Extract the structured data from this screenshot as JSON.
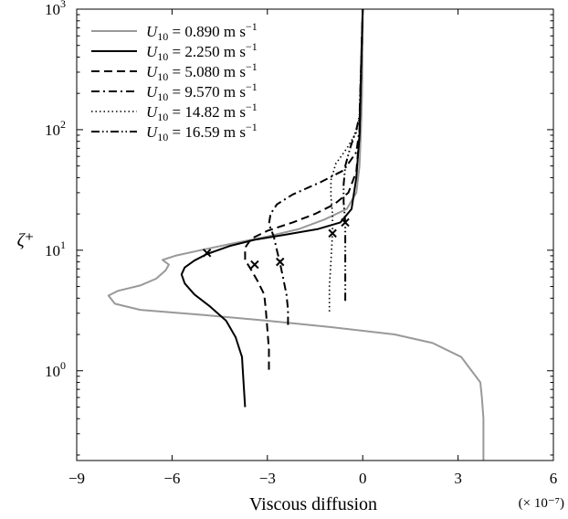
{
  "chart_data": {
    "type": "line",
    "xlabel": "Viscous diffusion",
    "ylabel": "ζ⁺",
    "x_scale_note": "(× 10⁻⁷)",
    "xlim": [
      -9,
      6
    ],
    "ylim": [
      0.18,
      1000
    ],
    "yscale": "log",
    "x_ticks": [
      -9,
      -6,
      -3,
      0,
      3,
      6
    ],
    "x_tick_labels": [
      "−9",
      "−6",
      "−3",
      "0",
      "3",
      "6"
    ],
    "y_ticks": [
      1,
      10,
      100,
      1000
    ],
    "y_tick_labels": [
      {
        "base": "10",
        "exp": "0"
      },
      {
        "base": "10",
        "exp": "1"
      },
      {
        "base": "10",
        "exp": "2"
      },
      {
        "base": "10",
        "exp": "3"
      }
    ],
    "grid": false,
    "legend_position": "top-left",
    "series": [
      {
        "name": "U10 = 0.890 m s−1",
        "legend": {
          "var": "U",
          "sub": "10",
          "text": " = 0.890 m s",
          "sup": "−1"
        },
        "color": "#999999",
        "dash": "",
        "width": 2,
        "points": [
          [
            3.8,
            0.18
          ],
          [
            3.8,
            0.4
          ],
          [
            3.75,
            0.6
          ],
          [
            3.7,
            0.8
          ],
          [
            3.1,
            1.3
          ],
          [
            2.2,
            1.7
          ],
          [
            1.0,
            2.0
          ],
          [
            -1.0,
            2.3
          ],
          [
            -3.0,
            2.6
          ],
          [
            -5.0,
            2.9
          ],
          [
            -7.0,
            3.2
          ],
          [
            -7.8,
            3.6
          ],
          [
            -8.0,
            4.2
          ],
          [
            -7.7,
            4.6
          ],
          [
            -7.0,
            5.1
          ],
          [
            -6.5,
            5.8
          ],
          [
            -6.2,
            6.8
          ],
          [
            -6.1,
            7.6
          ],
          [
            -6.3,
            8.3
          ],
          [
            -5.9,
            9.0
          ],
          [
            -5.1,
            10.0
          ],
          [
            -4.0,
            11.5
          ],
          [
            -3.0,
            13.0
          ],
          [
            -2.0,
            15.0
          ],
          [
            -1.2,
            18.0
          ],
          [
            -0.5,
            22.0
          ],
          [
            -0.2,
            30.0
          ],
          [
            -0.1,
            50.0
          ],
          [
            -0.05,
            110.0
          ],
          [
            -0.02,
            200.0
          ],
          [
            0.0,
            1000.0
          ]
        ]
      },
      {
        "name": "U10 = 2.250 m s−1",
        "legend": {
          "var": "U",
          "sub": "10",
          "text": " = 2.250 m s",
          "sup": "−1"
        },
        "color": "#000000",
        "dash": "",
        "width": 2,
        "points": [
          [
            -3.7,
            0.5
          ],
          [
            -3.75,
            0.8
          ],
          [
            -3.8,
            1.3
          ],
          [
            -4.0,
            1.9
          ],
          [
            -4.3,
            2.6
          ],
          [
            -4.8,
            3.4
          ],
          [
            -5.3,
            4.3
          ],
          [
            -5.6,
            5.3
          ],
          [
            -5.7,
            6.3
          ],
          [
            -5.6,
            7.2
          ],
          [
            -5.3,
            8.2
          ],
          [
            -4.9,
            9.3
          ],
          [
            -4.2,
            10.8
          ],
          [
            -3.4,
            12.2
          ],
          [
            -2.4,
            13.5
          ],
          [
            -1.4,
            15.0
          ],
          [
            -0.7,
            17.0
          ],
          [
            -0.35,
            22.0
          ],
          [
            -0.2,
            40.0
          ],
          [
            -0.1,
            90.0
          ],
          [
            0.0,
            1000.0
          ]
        ]
      },
      {
        "name": "U10 = 5.080 m s−1",
        "legend": {
          "var": "U",
          "sub": "10",
          "text": " = 5.080 m s",
          "sup": "−1"
        },
        "color": "#000000",
        "dash": "9,5",
        "width": 2,
        "points": [
          [
            -2.95,
            1.02
          ],
          [
            -2.95,
            1.5
          ],
          [
            -3.0,
            2.2
          ],
          [
            -3.05,
            3.2
          ],
          [
            -3.1,
            4.3
          ],
          [
            -3.3,
            5.5
          ],
          [
            -3.5,
            6.8
          ],
          [
            -3.7,
            8.3
          ],
          [
            -3.7,
            10.5
          ],
          [
            -3.5,
            12.5
          ],
          [
            -3.0,
            14.5
          ],
          [
            -2.2,
            17.0
          ],
          [
            -1.5,
            20.0
          ],
          [
            -0.9,
            24.0
          ],
          [
            -0.45,
            30.0
          ],
          [
            -0.2,
            45.0
          ],
          [
            -0.1,
            90.0
          ],
          [
            0.0,
            1000.0
          ]
        ]
      },
      {
        "name": "U10 = 9.570 m s−1",
        "legend": {
          "var": "U",
          "sub": "10",
          "text": " = 9.570 m s",
          "sup": "−1"
        },
        "color": "#000000",
        "dash": "9,4,2,4",
        "width": 2,
        "points": [
          [
            -2.35,
            2.4
          ],
          [
            -2.35,
            3.2
          ],
          [
            -2.4,
            4.3
          ],
          [
            -2.5,
            5.8
          ],
          [
            -2.6,
            7.8
          ],
          [
            -2.7,
            10.0
          ],
          [
            -2.8,
            13.0
          ],
          [
            -2.95,
            16.5
          ],
          [
            -2.9,
            20.0
          ],
          [
            -2.7,
            24.0
          ],
          [
            -2.2,
            29.0
          ],
          [
            -1.3,
            37.0
          ],
          [
            -0.6,
            46.0
          ],
          [
            -0.2,
            65.0
          ],
          [
            -0.1,
            100.0
          ],
          [
            0.0,
            1000.0
          ]
        ]
      },
      {
        "name": "U10 = 14.82 m s−1",
        "legend": {
          "var": "U",
          "sub": "10",
          "text": " = 14.82 m s",
          "sup": "−1"
        },
        "color": "#000000",
        "dash": "1.5,3",
        "width": 1.6,
        "points": [
          [
            -1.05,
            3.1
          ],
          [
            -1.05,
            5.0
          ],
          [
            -1.0,
            8.0
          ],
          [
            -0.95,
            14.0
          ],
          [
            -0.95,
            20.0
          ],
          [
            -1.0,
            28.0
          ],
          [
            -1.0,
            38.0
          ],
          [
            -0.85,
            52.0
          ],
          [
            -0.5,
            70.0
          ],
          [
            -0.2,
            95.0
          ],
          [
            -0.1,
            130.0
          ],
          [
            0.0,
            1000.0
          ]
        ]
      },
      {
        "name": "U10 = 16.59 m s−1",
        "legend": {
          "var": "U",
          "sub": "10",
          "text": " = 16.59 m s",
          "sup": "−1"
        },
        "color": "#000000",
        "dash": "9,3,1.5,3,1.5,3",
        "width": 2,
        "points": [
          [
            -0.55,
            3.8
          ],
          [
            -0.55,
            6.0
          ],
          [
            -0.55,
            10.0
          ],
          [
            -0.55,
            17.0
          ],
          [
            -0.6,
            25.0
          ],
          [
            -0.6,
            35.0
          ],
          [
            -0.55,
            50.0
          ],
          [
            -0.4,
            70.0
          ],
          [
            -0.2,
            100.0
          ],
          [
            -0.1,
            130.0
          ],
          [
            0.0,
            1000.0
          ]
        ]
      }
    ],
    "markers": [
      {
        "x": -4.9,
        "y": 9.5
      },
      {
        "x": -3.4,
        "y": 7.6
      },
      {
        "x": -2.6,
        "y": 8.0
      },
      {
        "x": -0.95,
        "y": 13.8
      },
      {
        "x": -0.55,
        "y": 17.0
      }
    ]
  }
}
